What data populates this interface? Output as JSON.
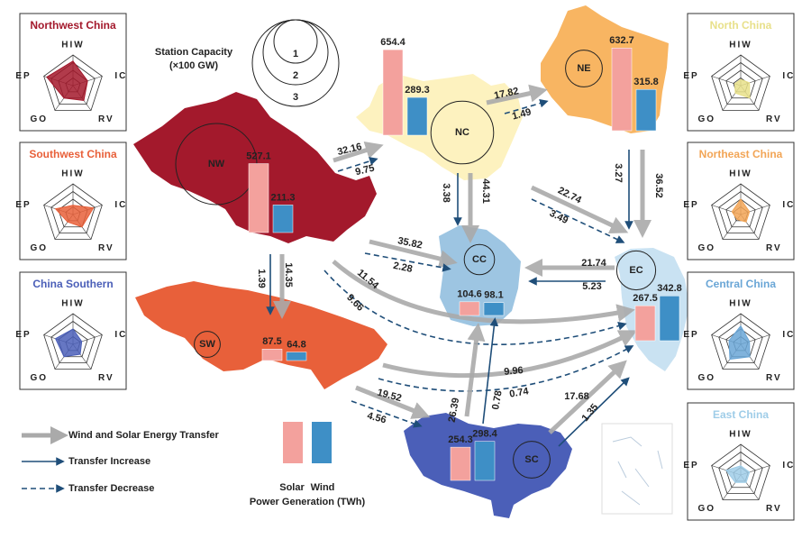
{
  "legend": {
    "capacity_title": "Station Capacity",
    "capacity_unit": "(×100 GW)",
    "capacity_levels": [
      1,
      2,
      3
    ],
    "transfer": "Wind and Solar Energy Transfer",
    "increase": "Transfer Increase",
    "decrease": "Transfer Decrease",
    "solar": "Solar",
    "wind": "Wind",
    "generation": "Power Generation (TWh)",
    "solar_color": "#f3a19d",
    "wind_color": "#3e8fc6"
  },
  "radar_axes": [
    "HIW",
    "IC",
    "RV",
    "GO",
    "EP"
  ],
  "radars": [
    {
      "title": "Northwest China",
      "color": "#a3192c",
      "values": [
        0.8,
        0.5,
        0.6,
        0.5,
        0.9
      ]
    },
    {
      "title": "Southwest China",
      "color": "#e8603a",
      "values": [
        0.3,
        0.7,
        0.5,
        0.3,
        0.6
      ]
    },
    {
      "title": "China Southern",
      "color": "#4b5fb8",
      "values": [
        0.5,
        0.3,
        0.4,
        0.5,
        0.6
      ]
    },
    {
      "title": "North China",
      "color": "#e8e08a",
      "values": [
        0.2,
        0.3,
        0.5,
        0.3,
        0.2
      ]
    },
    {
      "title": "Northeast China",
      "color": "#f2a556",
      "values": [
        0.5,
        0.3,
        0.3,
        0.2,
        0.3
      ]
    },
    {
      "title": "Central China",
      "color": "#6aa6d6",
      "values": [
        0.6,
        0.3,
        0.5,
        0.6,
        0.4
      ]
    },
    {
      "title": "East China",
      "color": "#9fcde8",
      "values": [
        0.3,
        0.3,
        0.3,
        0.3,
        0.5
      ]
    }
  ],
  "regions": [
    {
      "name": "NW",
      "capacity": 2.75,
      "solar": 527.1,
      "wind": 211.3
    },
    {
      "name": "NC",
      "capacity": 1.9,
      "solar": 654.4,
      "wind": 289.3
    },
    {
      "name": "NE",
      "capacity": 0.7,
      "solar": 632.7,
      "wind": 315.8
    },
    {
      "name": "SW",
      "capacity": 0.2,
      "solar": 87.5,
      "wind": 64.8
    },
    {
      "name": "CC",
      "capacity": 0.4,
      "solar": 104.6,
      "wind": 98.1
    },
    {
      "name": "EC",
      "capacity": 0.8,
      "solar": 267.5,
      "wind": 342.8
    },
    {
      "name": "SC",
      "capacity": 0.7,
      "solar": 254.3,
      "wind": 298.4
    }
  ],
  "flows": [
    {
      "from": "NW",
      "to": "NC",
      "total": 32.16,
      "change": 9.75,
      "change_type": "decrease"
    },
    {
      "from": "NC",
      "to": "NE",
      "total": 17.82,
      "change": 1.49,
      "change_type": "decrease"
    },
    {
      "from": "NC",
      "to": "CC",
      "total": 44.31,
      "change": 3.38,
      "change_type": "increase"
    },
    {
      "from": "NE",
      "to": "EC",
      "total": 36.52,
      "change": 3.27,
      "change_type": "increase"
    },
    {
      "from": "NC",
      "to": "EC",
      "total": 22.74,
      "change": 3.49,
      "change_type": "decrease"
    },
    {
      "from": "NW",
      "to": "CC",
      "total": 35.82,
      "change": 2.28,
      "change_type": "decrease"
    },
    {
      "from": "EC",
      "to": "CC",
      "total": 21.74,
      "change": 5.23,
      "change_type": "increase"
    },
    {
      "from": "NW",
      "to": "SW",
      "total": 14.35,
      "change": 1.39,
      "change_type": "increase"
    },
    {
      "from": "NW",
      "to": "EC",
      "total": 11.54,
      "change": 9.66,
      "change_type": "decrease"
    },
    {
      "from": "SW",
      "to": "EC",
      "total": 9.96,
      "change": 0.74,
      "change_type": "decrease"
    },
    {
      "from": "SW",
      "to": "SC",
      "total": 19.52,
      "change": 4.56,
      "change_type": "decrease"
    },
    {
      "from": "SC",
      "to": "CC",
      "total": 26.39,
      "change": 0.78,
      "change_type": "increase"
    },
    {
      "from": "SC",
      "to": "EC",
      "total": 17.68,
      "change": 1.35,
      "change_type": "increase"
    }
  ]
}
